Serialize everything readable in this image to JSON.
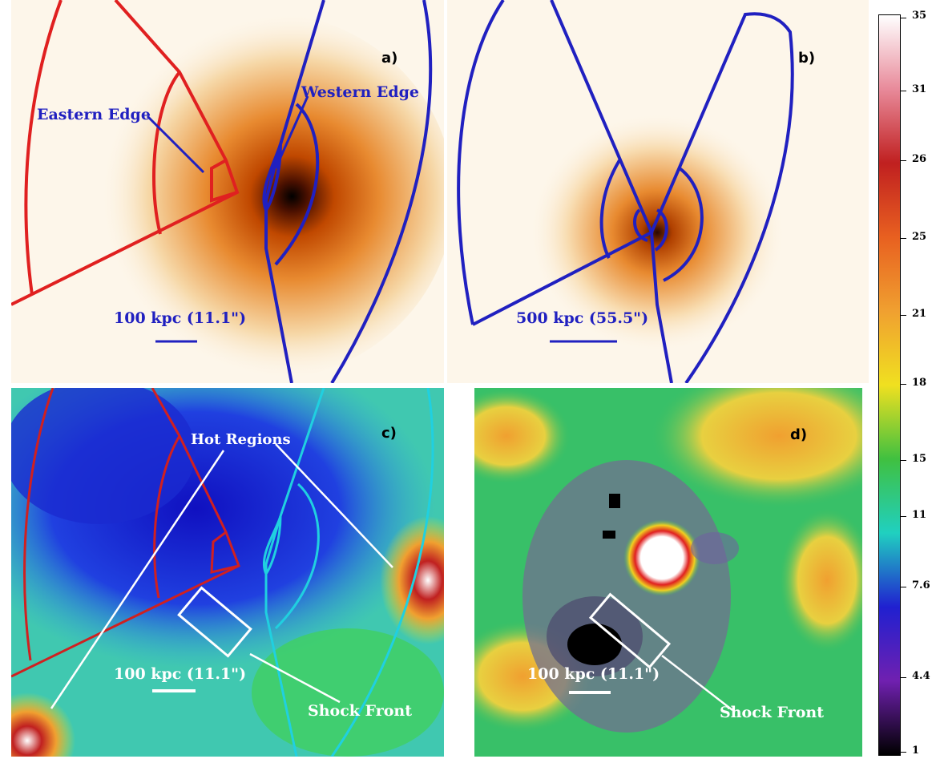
{
  "panels": {
    "a": {
      "letter": "a)",
      "eastern_label": "Eastern Edge",
      "western_label": "Western Edge",
      "scale_label": "100 kpc (11.1\")"
    },
    "b": {
      "letter": "b)",
      "scale_label": "500 kpc (55.5\")"
    },
    "c": {
      "letter": "c)",
      "hot_label": "Hot Regions",
      "shock_label": "Shock Front",
      "scale_label": "100 kpc (11.1\")"
    },
    "d": {
      "letter": "d)",
      "shock_label": "Shock Front",
      "scale_label": "100 kpc (11.1\")"
    }
  },
  "colorbar": {
    "ticks": [
      "35",
      "31",
      "26",
      "25",
      "21",
      "18",
      "15",
      "11",
      "7.6",
      "4.4",
      "1"
    ],
    "colors": [
      "#ffffff",
      "#e88a9a",
      "#c02020",
      "#e86020",
      "#f0a030",
      "#f0e020",
      "#40c040",
      "#20d0c0",
      "#2020d0",
      "#7020b0",
      "#000000"
    ]
  },
  "colors": {
    "red_region": "#e02020",
    "blue_region": "#2020c0",
    "cyan_region": "#20d0e0",
    "label_blue": "#2020c0",
    "label_white": "#ffffff"
  }
}
